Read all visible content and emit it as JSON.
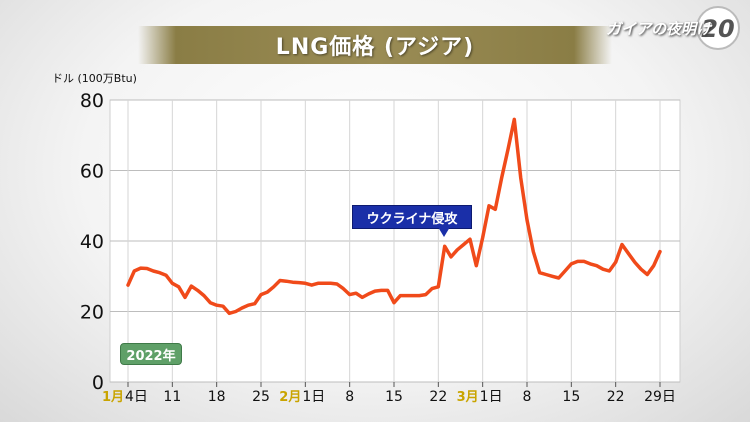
{
  "header": {
    "title": "LNG価格 (アジア)",
    "logo_text": "ガイアの夜明け",
    "logo_number": "20"
  },
  "chart_data": {
    "type": "line",
    "title": "LNG価格 (アジア)",
    "ylabel": "ドル (100万Btu)",
    "year_label": "2022年",
    "ylim": [
      0,
      80
    ],
    "yticks": [
      0,
      20,
      40,
      60,
      80
    ],
    "grid": true,
    "xticks": [
      {
        "day": 0,
        "month": "1月",
        "label": "4日"
      },
      {
        "day": 7,
        "label": "11"
      },
      {
        "day": 14,
        "label": "18"
      },
      {
        "day": 21,
        "label": "25"
      },
      {
        "day": 28,
        "month": "2月",
        "label": "1日"
      },
      {
        "day": 35,
        "label": "8"
      },
      {
        "day": 42,
        "label": "15"
      },
      {
        "day": 49,
        "label": "22"
      },
      {
        "day": 56,
        "month": "3月",
        "label": "1日"
      },
      {
        "day": 63,
        "label": "8"
      },
      {
        "day": 70,
        "label": "15"
      },
      {
        "day": 77,
        "label": "22"
      },
      {
        "day": 84,
        "label": "29日"
      }
    ],
    "annotation": {
      "text": "ウクライナ侵攻",
      "day": 51
    },
    "series": [
      {
        "color": "#f04a1a",
        "points": [
          [
            0,
            27.5
          ],
          [
            1,
            31.5
          ],
          [
            2,
            32.3
          ],
          [
            3,
            32.2
          ],
          [
            4,
            31.5
          ],
          [
            5,
            31
          ],
          [
            6,
            30.3
          ],
          [
            7,
            28
          ],
          [
            8,
            27
          ],
          [
            9,
            24
          ],
          [
            10,
            27.2
          ],
          [
            11,
            26
          ],
          [
            12,
            24.5
          ],
          [
            13,
            22.5
          ],
          [
            14,
            21.8
          ],
          [
            15,
            21.5
          ],
          [
            16,
            19.5
          ],
          [
            17,
            20
          ],
          [
            18,
            21
          ],
          [
            19,
            21.8
          ],
          [
            20,
            22.2
          ],
          [
            21,
            24.8
          ],
          [
            22,
            25.5
          ],
          [
            23,
            27
          ],
          [
            24,
            28.8
          ],
          [
            25,
            28.6
          ],
          [
            26,
            28.3
          ],
          [
            27,
            28.2
          ],
          [
            28,
            28
          ],
          [
            29,
            27.5
          ],
          [
            30,
            28
          ],
          [
            31,
            28
          ],
          [
            32,
            28
          ],
          [
            33,
            27.8
          ],
          [
            34,
            26.5
          ],
          [
            35,
            24.8
          ],
          [
            36,
            25.2
          ],
          [
            37,
            24
          ],
          [
            38,
            25
          ],
          [
            39,
            25.8
          ],
          [
            40,
            26
          ],
          [
            41,
            26
          ],
          [
            42,
            22.5
          ],
          [
            43,
            24.5
          ],
          [
            44,
            24.5
          ],
          [
            45,
            24.5
          ],
          [
            46,
            24.5
          ],
          [
            47,
            24.8
          ],
          [
            48,
            26.5
          ],
          [
            49,
            27
          ],
          [
            50,
            38.5
          ],
          [
            51,
            35.5
          ],
          [
            52,
            37.5
          ],
          [
            53,
            39
          ],
          [
            54,
            40.5
          ],
          [
            55,
            33
          ],
          [
            56,
            41
          ],
          [
            57,
            50
          ],
          [
            58,
            49
          ],
          [
            59,
            58
          ],
          [
            60,
            66
          ],
          [
            61,
            74.5
          ],
          [
            62,
            58
          ],
          [
            63,
            46
          ],
          [
            64,
            37
          ],
          [
            65,
            31
          ],
          [
            66,
            30.5
          ],
          [
            67,
            30
          ],
          [
            68,
            29.5
          ],
          [
            69,
            31.5
          ],
          [
            70,
            33.5
          ],
          [
            71,
            34.2
          ],
          [
            72,
            34.2
          ],
          [
            73,
            33.5
          ],
          [
            74,
            33
          ],
          [
            75,
            32
          ],
          [
            76,
            31.5
          ],
          [
            77,
            34
          ],
          [
            78,
            39
          ],
          [
            79,
            36.5
          ],
          [
            80,
            34
          ],
          [
            81,
            32
          ],
          [
            82,
            30.5
          ],
          [
            83,
            33
          ],
          [
            84,
            37
          ]
        ]
      }
    ]
  }
}
